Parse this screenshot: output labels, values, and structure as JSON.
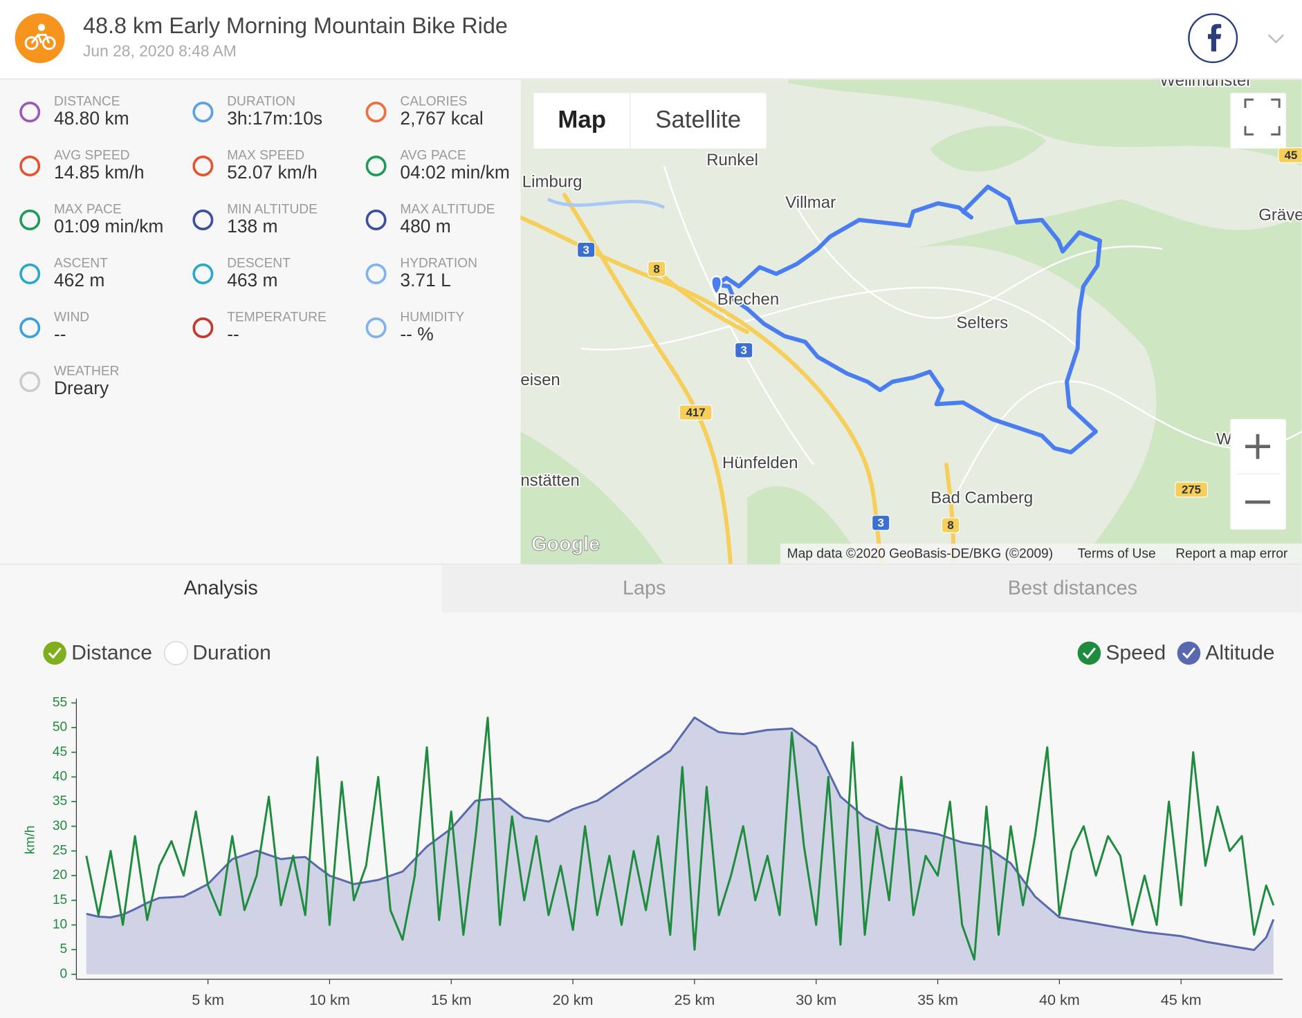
{
  "header": {
    "title": "48.8 km Early Morning Mountain Bike Ride",
    "date": "Jun 28, 2020 8:48 AM"
  },
  "stats": [
    {
      "label": "DISTANCE",
      "value": "48.80 km"
    },
    {
      "label": "DURATION",
      "value": "3h:17m:10s"
    },
    {
      "label": "CALORIES",
      "value": "2,767 kcal"
    },
    {
      "label": "AVG SPEED",
      "value": "14.85 km/h"
    },
    {
      "label": "MAX SPEED",
      "value": "52.07 km/h"
    },
    {
      "label": "AVG PACE",
      "value": "04:02 min/km"
    },
    {
      "label": "MAX PACE",
      "value": "01:09 min/km"
    },
    {
      "label": "MIN ALTITUDE",
      "value": "138 m"
    },
    {
      "label": "MAX ALTITUDE",
      "value": "480 m"
    },
    {
      "label": "ASCENT",
      "value": "462 m"
    },
    {
      "label": "DESCENT",
      "value": "463 m"
    },
    {
      "label": "HYDRATION",
      "value": "3.71 L"
    },
    {
      "label": "WIND",
      "value": "--"
    },
    {
      "label": "TEMPERATURE",
      "value": "--"
    },
    {
      "label": "HUMIDITY",
      "value": "-- %"
    },
    {
      "label": "WEATHER",
      "value": "Dreary"
    }
  ],
  "map": {
    "buttons": [
      "Map",
      "Satellite"
    ],
    "places": [
      "Weilmünster",
      "Runkel",
      "Limburg",
      "Villmar",
      "Gräve",
      "Brechen",
      "Selters",
      "eisen",
      "Hünfelden",
      "nstätten",
      "Bad Camberg",
      "W"
    ],
    "roads": [
      "3",
      "8",
      "3",
      "417",
      "3",
      "8",
      "275",
      "45"
    ],
    "logo": "Google",
    "attribution": [
      "Map data ©2020 GeoBasis-DE/BKG (©2009)",
      "Terms of Use",
      "Report a map error"
    ]
  },
  "tabs": [
    "Analysis",
    "Laps",
    "Best distances"
  ],
  "x_modes": [
    "Distance",
    "Duration"
  ],
  "chart_data": {
    "type": "line",
    "ylabel": "km/h",
    "xlim": [
      0,
      48.8
    ],
    "xticks": [
      {
        "value": 5,
        "label": "5 km"
      },
      {
        "value": 10,
        "label": "10 km"
      },
      {
        "value": 15,
        "label": "15 km"
      },
      {
        "value": 20,
        "label": "20 km"
      },
      {
        "value": 25,
        "label": "25 km"
      },
      {
        "value": 30,
        "label": "30 km"
      },
      {
        "value": 35,
        "label": "35 km"
      },
      {
        "value": 40,
        "label": "40 km"
      },
      {
        "value": 45,
        "label": "45 km"
      }
    ],
    "ylim": [
      0,
      55
    ],
    "yticks": [
      0,
      5,
      10,
      15,
      20,
      25,
      30,
      35,
      40,
      45,
      50,
      55
    ],
    "y2lim": [
      107,
      498
    ],
    "x": [
      0,
      0.5,
      1,
      1.5,
      2,
      2.5,
      3,
      3.5,
      4,
      4.5,
      5,
      5.5,
      6,
      6.5,
      7,
      7.5,
      8,
      8.5,
      9,
      9.5,
      10,
      10.5,
      11,
      11.5,
      12,
      12.5,
      13,
      13.5,
      14,
      14.5,
      15,
      15.5,
      16,
      16.5,
      17,
      17.5,
      18,
      18.5,
      19,
      19.5,
      20,
      20.5,
      21,
      21.5,
      22,
      22.5,
      23,
      23.5,
      24,
      24.5,
      25,
      25.5,
      26,
      26.5,
      27,
      27.5,
      28,
      28.5,
      29,
      29.5,
      30,
      30.5,
      31,
      31.5,
      32,
      32.5,
      33,
      33.5,
      34,
      34.5,
      35,
      35.5,
      36,
      36.5,
      37,
      37.5,
      38,
      38.5,
      39,
      39.5,
      40,
      40.5,
      41,
      41.5,
      42,
      42.5,
      43,
      43.5,
      44,
      44.5,
      45,
      45.5,
      46,
      46.5,
      47,
      47.5,
      48,
      48.5,
      48.8
    ],
    "series": [
      {
        "name": "Speed",
        "color": "#1f8b3f",
        "values": [
          24,
          12,
          25,
          10,
          28,
          11,
          22,
          27,
          20,
          33,
          18,
          12,
          28,
          13,
          20,
          36,
          14,
          24,
          12,
          44,
          10,
          39,
          15,
          22,
          40,
          13,
          7,
          20,
          46,
          11,
          33,
          8,
          28,
          52,
          10,
          32,
          15,
          28,
          12,
          22,
          9,
          30,
          12,
          24,
          10,
          25,
          13,
          28,
          8,
          42,
          5,
          38,
          12,
          20,
          30,
          15,
          24,
          12,
          49,
          26,
          10,
          40,
          6,
          47,
          8,
          30,
          15,
          40,
          12,
          24,
          20,
          35,
          10,
          3,
          34,
          8,
          30,
          14,
          28,
          46,
          12,
          25,
          30,
          20,
          28,
          24,
          10,
          20,
          10,
          35,
          14,
          45,
          22,
          34,
          25,
          28,
          8,
          18,
          14
        ]
      },
      {
        "name": "Altitude",
        "color": "#5a68ae",
        "axis": "y2",
        "values": [
          194,
          190,
          189,
          193,
          201,
          210,
          217,
          218,
          219,
          228,
          237,
          255,
          273,
          279,
          285,
          279,
          273,
          275,
          276,
          262,
          249,
          243,
          237,
          240,
          243,
          249,
          255,
          273,
          291,
          304,
          317,
          337,
          357,
          359,
          360,
          346,
          333,
          330,
          327,
          336,
          345,
          351,
          357,
          369,
          381,
          393,
          405,
          417,
          429,
          453,
          477,
          466,
          456,
          454,
          453,
          456,
          459,
          460,
          461,
          448,
          435,
          399,
          363,
          348,
          333,
          325,
          317,
          316,
          315,
          312,
          309,
          303,
          297,
          294,
          291,
          279,
          267,
          243,
          219,
          204,
          189,
          186,
          183,
          180,
          177,
          174,
          171,
          168,
          166,
          164,
          162,
          158,
          154,
          151,
          148,
          145,
          142,
          160,
          186
        ]
      }
    ]
  }
}
